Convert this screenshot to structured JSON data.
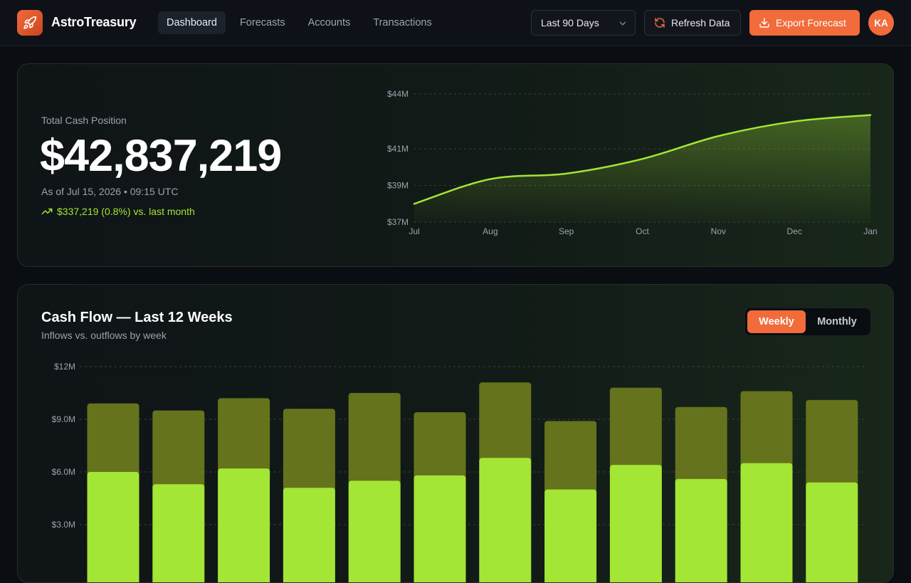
{
  "app": {
    "brand": "AstroTreasury"
  },
  "nav": {
    "items": [
      {
        "label": "Dashboard",
        "active": true
      },
      {
        "label": "Forecasts",
        "active": false
      },
      {
        "label": "Accounts",
        "active": false
      },
      {
        "label": "Transactions",
        "active": false
      }
    ]
  },
  "toolbar": {
    "range_select": "Last 90 Days",
    "refresh_label": "Refresh Data",
    "export_label": "Export Forecast",
    "avatar_initials": "KA"
  },
  "kpi": {
    "label": "Total Cash Position",
    "value": "$42,837,219",
    "as_of": "As of Jul 15, 2026 • 09:15 UTC",
    "delta": "$337,219 (0.8%) vs. last month"
  },
  "cashflow": {
    "title": "Cash Flow — Last 12 Weeks",
    "subtitle": "Inflows vs. outflows by week",
    "toggle": {
      "weekly": "Weekly",
      "monthly": "Monthly",
      "selected": "Weekly"
    }
  },
  "colors": {
    "accent": "#f26b3a",
    "line": "#a3e635",
    "inflow": "#a3e635",
    "outflow": "#65731c"
  },
  "chart_data": [
    {
      "type": "area",
      "y_tick_labels": [
        "$44M",
        "$41M",
        "$39M",
        "$37M"
      ],
      "y_ticks": [
        44,
        41,
        39,
        37
      ],
      "ylim": [
        37,
        44
      ],
      "x": [
        "Jul",
        "Aug",
        "Sep",
        "Oct",
        "Nov",
        "Dec",
        "Jan"
      ],
      "values": [
        38.0,
        39.35,
        39.65,
        40.45,
        41.7,
        42.5,
        42.85
      ],
      "grid": true
    },
    {
      "type": "bar",
      "stacked": true,
      "y_tick_labels": [
        "$12M",
        "$9.0M",
        "$6.0M",
        "$3.0M"
      ],
      "y_ticks": [
        12,
        9,
        6,
        3
      ],
      "ylim": [
        0,
        12
      ],
      "grid": true,
      "series": [
        {
          "values": [
            6.0,
            5.3,
            6.2,
            5.1,
            5.5,
            5.8,
            6.8,
            5.0,
            6.4,
            5.6,
            6.5,
            5.4
          ]
        },
        {
          "values": [
            3.9,
            4.2,
            4.0,
            4.5,
            5.0,
            3.6,
            4.3,
            3.9,
            4.4,
            4.1,
            4.1,
            4.7
          ]
        }
      ]
    }
  ]
}
